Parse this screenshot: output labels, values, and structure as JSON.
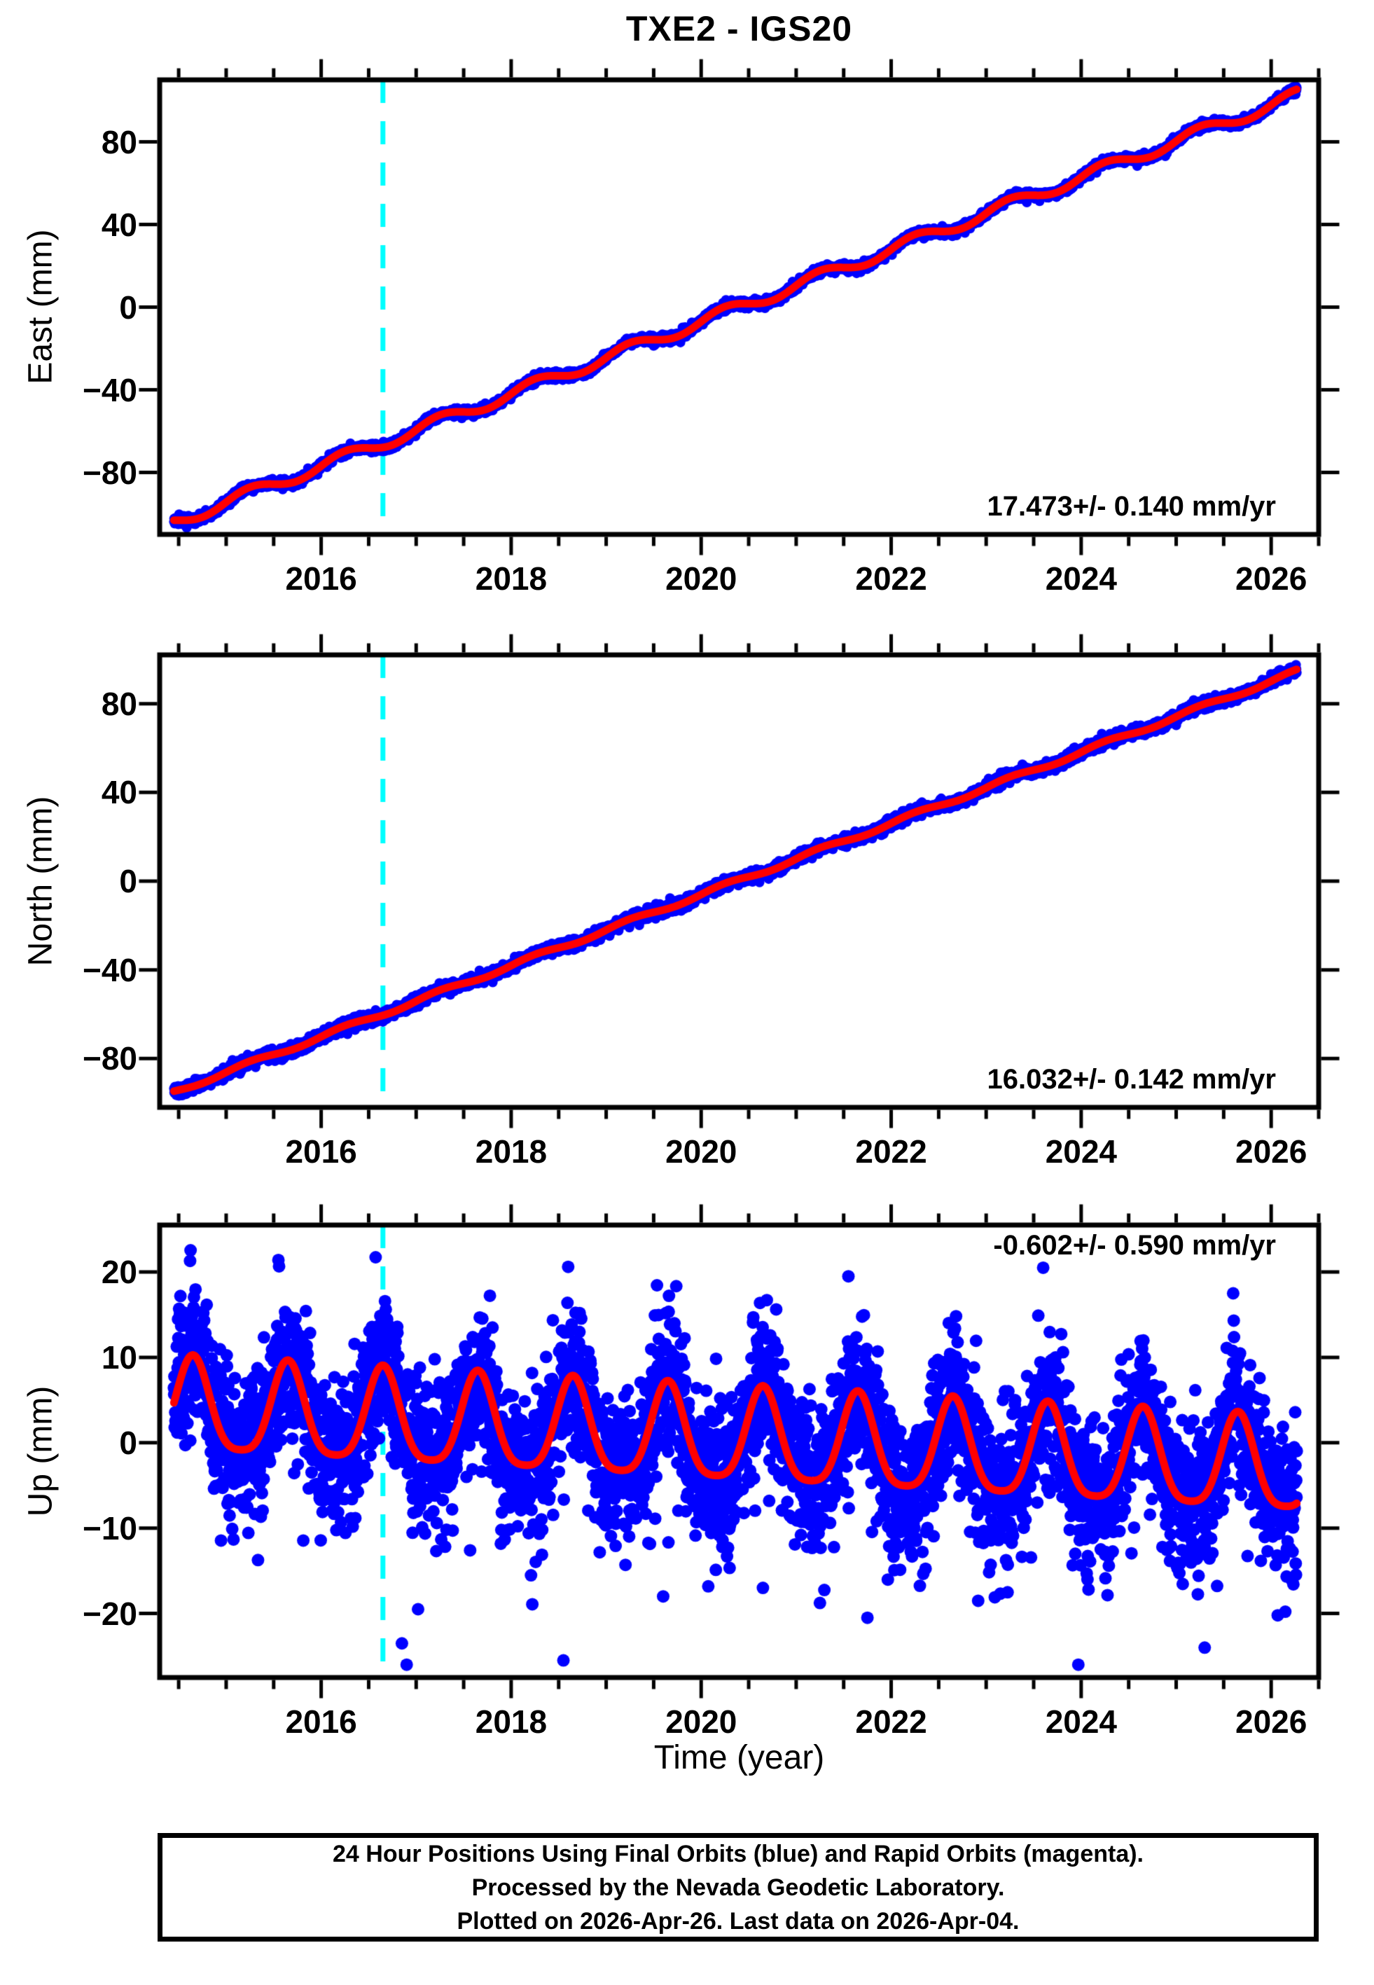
{
  "title": "TXE2 - IGS20",
  "xlabel": "Time (year)",
  "footer": {
    "lines": [
      "24 Hour Positions Using Final Orbits (blue) and Rapid Orbits (magenta).",
      "Processed by the Nevada Geodetic Laboratory.",
      "Plotted on 2026-Apr-26. Last data on 2026-Apr-04."
    ]
  },
  "colors": {
    "final_orbits_points": "#0000ff",
    "rapid_orbits_points": "#ff00ff",
    "model_curve": "#ff0000",
    "event_line": "#00ffff",
    "frame": "#000000",
    "background": "#ffffff"
  },
  "random_seed": 20260426,
  "chart_data": [
    {
      "type": "scatter",
      "component": "east",
      "ylabel": "East (mm)",
      "rate_label": "17.473+/- 0.140 mm/yr",
      "xlim": [
        2014.3,
        2026.5
      ],
      "ylim": [
        -110,
        110
      ],
      "xticks": [
        2016,
        2018,
        2020,
        2022,
        2024,
        2026
      ],
      "xtick_minor_step": 0.5,
      "yticks": [
        -80,
        -40,
        0,
        40,
        80
      ],
      "event_line_year": 2016.65,
      "series": {
        "start_year": 2014.45,
        "end_year": 2026.27,
        "samples_per_year": 365,
        "value_at_start_mm": -104,
        "rate_mm_per_yr": 17.473,
        "annual_amp_mm": 2.9,
        "annual_peak_frac": 0.25,
        "semiannual_amp_mm": 0,
        "noise_sigma_mm": 1.05,
        "downward_tail": 0
      },
      "outliers": []
    },
    {
      "type": "scatter",
      "component": "north",
      "ylabel": "North (mm)",
      "rate_label": "16.032+/- 0.142 mm/yr",
      "xlim": [
        2014.3,
        2026.5
      ],
      "ylim": [
        -102,
        102
      ],
      "xticks": [
        2016,
        2018,
        2020,
        2022,
        2024,
        2026
      ],
      "xtick_minor_step": 0.5,
      "yticks": [
        -80,
        -40,
        0,
        40,
        80
      ],
      "event_line_year": 2016.65,
      "series": {
        "start_year": 2014.45,
        "end_year": 2026.27,
        "samples_per_year": 365,
        "value_at_start_mm": -95,
        "rate_mm_per_yr": 16.032,
        "annual_amp_mm": 1.0,
        "annual_peak_frac": 0.25,
        "semiannual_amp_mm": 0,
        "noise_sigma_mm": 1.25,
        "downward_tail": 0
      },
      "outliers": []
    },
    {
      "type": "scatter",
      "component": "up",
      "ylabel": "Up (mm)",
      "rate_label": "-0.602+/- 0.590 mm/yr",
      "xlim": [
        2014.3,
        2026.5
      ],
      "ylim": [
        -27.5,
        25.5
      ],
      "xticks": [
        2016,
        2018,
        2020,
        2022,
        2024,
        2026
      ],
      "xtick_minor_step": 0.5,
      "yticks": [
        -20,
        -10,
        0,
        10,
        20
      ],
      "event_line_year": 2016.65,
      "series": {
        "start_year": 2014.45,
        "end_year": 2026.27,
        "samples_per_year": 365,
        "value_at_start_mm": 3.9,
        "rate_mm_per_yr": -0.602,
        "annual_amp_mm": 5.4,
        "annual_peak_frac": 0.65,
        "semiannual_amp_mm": 1.1,
        "noise_sigma_mm": 4.3,
        "downward_tail": 0.035
      },
      "outliers": [
        {
          "year": 2014.62,
          "value": 21.3
        },
        {
          "year": 2015.55,
          "value": 21.4
        },
        {
          "year": 2016.85,
          "value": -23.5
        },
        {
          "year": 2016.9,
          "value": -26.0
        },
        {
          "year": 2017.02,
          "value": -19.5
        },
        {
          "year": 2018.55,
          "value": -25.5
        },
        {
          "year": 2018.6,
          "value": 20.6
        },
        {
          "year": 2019.6,
          "value": -18.0
        },
        {
          "year": 2020.65,
          "value": -17.0
        },
        {
          "year": 2021.55,
          "value": 19.5
        },
        {
          "year": 2021.75,
          "value": -20.5
        },
        {
          "year": 2023.6,
          "value": 20.5
        },
        {
          "year": 2023.97,
          "value": -26.0
        },
        {
          "year": 2025.3,
          "value": -24.0
        },
        {
          "year": 2025.6,
          "value": 17.5
        }
      ]
    }
  ]
}
